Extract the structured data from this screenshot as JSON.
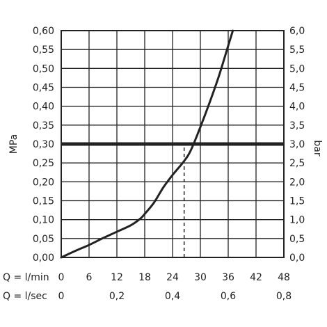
{
  "chart_data": {
    "type": "line",
    "title": "",
    "y_left": {
      "label": "MPa",
      "ticks": [
        "0,00",
        "0,05",
        "0,10",
        "0,15",
        "0,20",
        "0,25",
        "0,30",
        "0,35",
        "0,40",
        "0,45",
        "0,50",
        "0,55",
        "0,60"
      ],
      "range": [
        0,
        0.6
      ]
    },
    "y_right": {
      "label": "bar",
      "ticks": [
        "0,0",
        "0,5",
        "1,0",
        "1,5",
        "2,0",
        "2,5",
        "3,0",
        "3,5",
        "4,0",
        "4,5",
        "5,0",
        "5,5",
        "6,0"
      ],
      "range": [
        0,
        6
      ]
    },
    "x_lpm": {
      "label": "Q = l/min",
      "ticks": [
        "0",
        "6",
        "12",
        "18",
        "24",
        "30",
        "36",
        "42",
        "48"
      ],
      "range": [
        0,
        48
      ]
    },
    "x_lps": {
      "label": "Q = l/sec",
      "ticks": [
        {
          "text": "0",
          "value": 0
        },
        {
          "text": "0,2",
          "value": 0.2
        },
        {
          "text": "0,4",
          "value": 0.4
        },
        {
          "text": "0,6",
          "value": 0.6
        },
        {
          "text": "0,8",
          "value": 0.8
        }
      ],
      "range": [
        0,
        0.8
      ]
    },
    "grid": true,
    "series": [
      {
        "x": [
          0,
          3,
          6,
          9,
          12,
          15,
          17,
          18,
          20,
          22,
          24,
          26.5,
          28,
          30,
          32,
          34,
          36,
          37
        ],
        "y": [
          0,
          0.017,
          0.033,
          0.051,
          0.068,
          0.085,
          0.102,
          0.115,
          0.145,
          0.185,
          0.218,
          0.255,
          0.285,
          0.345,
          0.41,
          0.48,
          0.56,
          0.6
        ]
      }
    ],
    "reference_line": {
      "axis": "y",
      "value": 0.3
    },
    "marker_line": {
      "x": 26.5,
      "from_y": 0,
      "to_y": 0.3,
      "style": "dashed"
    }
  }
}
